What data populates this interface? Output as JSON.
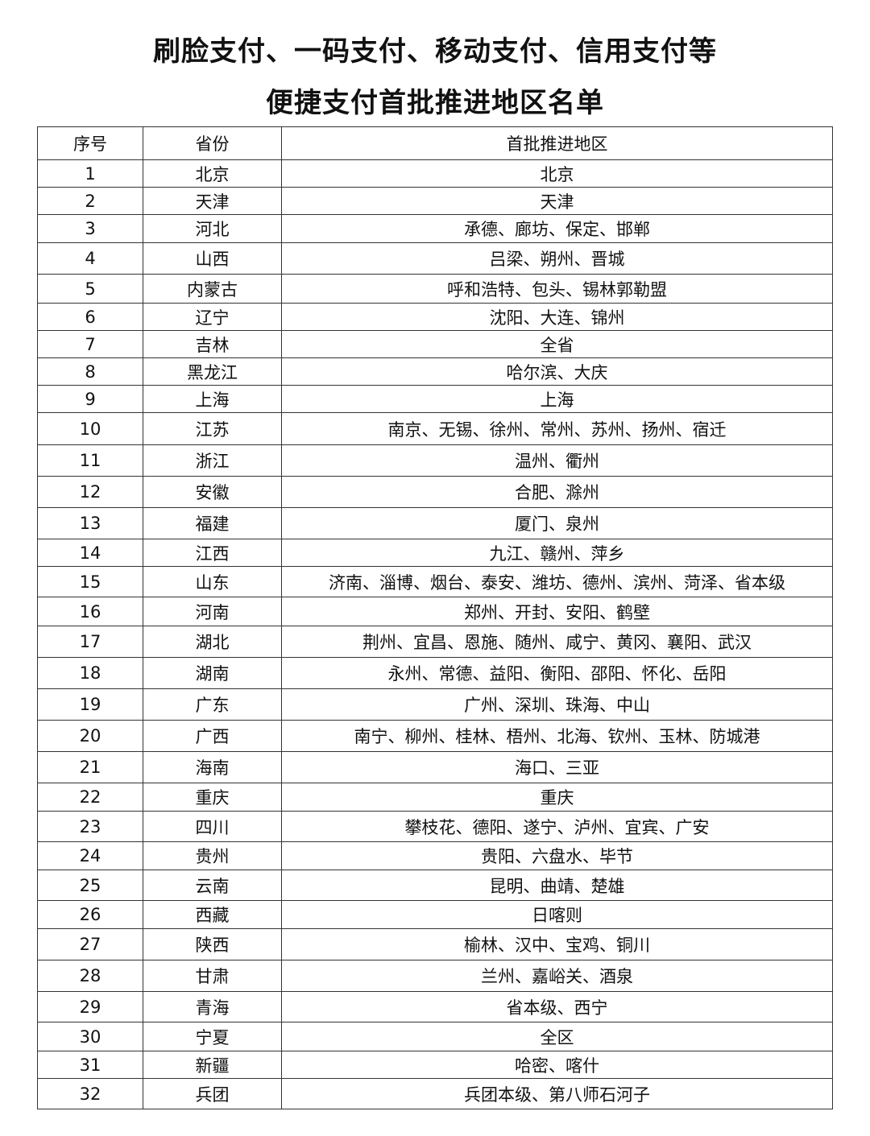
{
  "title_line1": "刷脸支付、一码支付、移动支付、信用支付等",
  "title_line2": "便捷支付首批推进地区名单",
  "columns": [
    "序号",
    "省份",
    "首批推进地区"
  ],
  "rows": [
    [
      "1",
      "北京",
      "北京"
    ],
    [
      "2",
      "天津",
      "天津"
    ],
    [
      "3",
      "河北",
      "承德、廊坊、保定、邯郸"
    ],
    [
      "4",
      "山西",
      "吕梁、朔州、晋城"
    ],
    [
      "5",
      "内蒙古",
      "呼和浩特、包头、锡林郭勒盟"
    ],
    [
      "6",
      "辽宁",
      "沈阳、大连、锦州"
    ],
    [
      "7",
      "吉林",
      "全省"
    ],
    [
      "8",
      "黑龙江",
      "哈尔滨、大庆"
    ],
    [
      "9",
      "上海",
      "上海"
    ],
    [
      "10",
      "江苏",
      "南京、无锡、徐州、常州、苏州、扬州、宿迁"
    ],
    [
      "11",
      "浙江",
      "温州、衢州"
    ],
    [
      "12",
      "安徽",
      "合肥、滁州"
    ],
    [
      "13",
      "福建",
      "厦门、泉州"
    ],
    [
      "14",
      "江西",
      "九江、赣州、萍乡"
    ],
    [
      "15",
      "山东",
      "济南、淄博、烟台、泰安、潍坊、德州、滨州、菏泽、省本级"
    ],
    [
      "16",
      "河南",
      "郑州、开封、安阳、鹤壁"
    ],
    [
      "17",
      "湖北",
      "荆州、宜昌、恩施、随州、咸宁、黄冈、襄阳、武汉"
    ],
    [
      "18",
      "湖南",
      "永州、常德、益阳、衡阳、邵阳、怀化、岳阳"
    ],
    [
      "19",
      "广东",
      "广州、深圳、珠海、中山"
    ],
    [
      "20",
      "广西",
      "南宁、柳州、桂林、梧州、北海、钦州、玉林、防城港"
    ],
    [
      "21",
      "海南",
      "海口、三亚"
    ],
    [
      "22",
      "重庆",
      "重庆"
    ],
    [
      "23",
      "四川",
      "攀枝花、德阳、遂宁、泸州、宜宾、广安"
    ],
    [
      "24",
      "贵州",
      "贵阳、六盘水、毕节"
    ],
    [
      "25",
      "云南",
      "昆明、曲靖、楚雄"
    ],
    [
      "26",
      "西藏",
      "日喀则"
    ],
    [
      "27",
      "陕西",
      "榆林、汉中、宝鸡、铜川"
    ],
    [
      "28",
      "甘肃",
      "兰州、嘉峪关、酒泉"
    ],
    [
      "29",
      "青海",
      "省本级、西宁"
    ],
    [
      "30",
      "宁夏",
      "全区"
    ],
    [
      "31",
      "新疆",
      "哈密、喀什"
    ],
    [
      "32",
      "兵团",
      "兵团本级、第八师石河子"
    ]
  ]
}
